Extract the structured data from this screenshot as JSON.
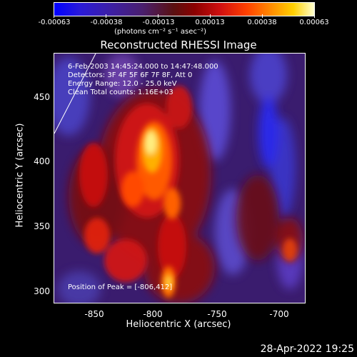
{
  "colorbar": {
    "ticks": [
      "-0.00063",
      "-0.00038",
      "-0.00013",
      "0.00013",
      "0.00038",
      "0.00063"
    ],
    "units": "(photons cm⁻² s⁻¹ asec⁻²)"
  },
  "title": "Reconstructed RHESSI Image",
  "overlay": {
    "line1": "6-Feb-2003 14:45:24.000 to 14:47:48.000",
    "line2": "Detectors: 3F 4F 5F 6F 7F 8F, Att 0",
    "line3": "Energy Range: 12.0 - 25.0 keV",
    "line4": "Clean    Total counts: 1.16E+03",
    "peak": "Position of Peak = [-806,412]"
  },
  "axes": {
    "xlabel": "Heliocentric X (arcsec)",
    "ylabel": "Heliocentric Y (arcsec)",
    "xticks": [
      "-850",
      "-800",
      "-750",
      "-700"
    ],
    "yticks": [
      "450",
      "400",
      "350",
      "300"
    ]
  },
  "footer": {
    "timestamp": "28-Apr-2022 19:25"
  },
  "colors": {
    "background": "#000000",
    "foreground": "#ffffff"
  }
}
